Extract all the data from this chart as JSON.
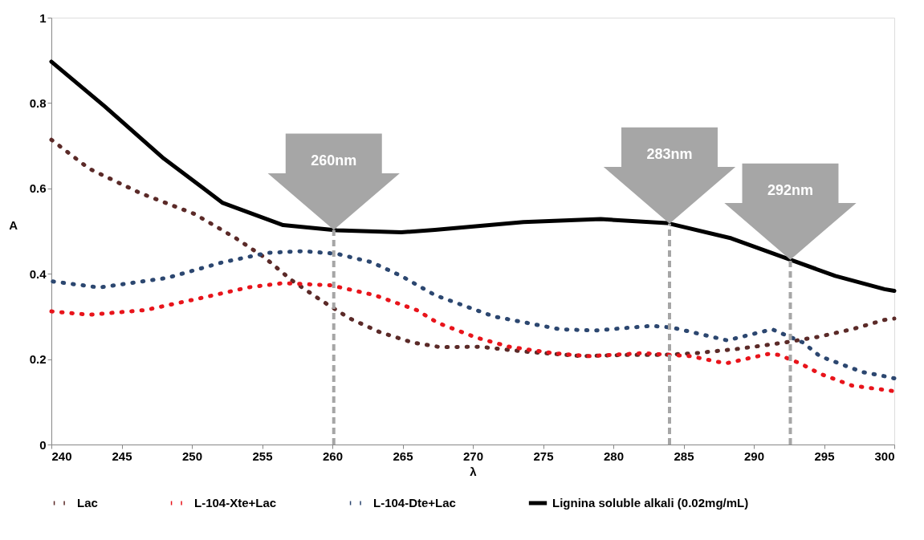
{
  "chart_data": {
    "type": "line",
    "xlabel": "λ",
    "ylabel": "A",
    "xlim": [
      240,
      300
    ],
    "xticks": [
      240,
      245,
      250,
      255,
      260,
      265,
      270,
      275,
      280,
      285,
      290,
      295,
      300
    ],
    "ylim": [
      0,
      1
    ],
    "yticks": [
      {
        "value": 0,
        "label": "0"
      },
      0.2,
      0.4,
      0.6,
      0.8,
      {
        "value": 1,
        "label": "1"
      }
    ],
    "grid": false,
    "legend": "bottom",
    "marker": "none",
    "series": [
      {
        "name": "Lac",
        "color": "#5b2a28",
        "line_style": "dotted",
        "x": [
          240,
          242.7,
          246.4,
          250.2,
          253.1,
          255.1,
          257.1,
          259.1,
          261.2,
          263.4,
          265.7,
          267.7,
          270.5,
          273.6,
          277.8,
          281,
          283.5,
          285.9,
          289.1,
          292.2,
          294.7,
          297.1,
          299.3,
          300
        ],
        "values": [
          0.714,
          0.646,
          0.588,
          0.54,
          0.484,
          0.44,
          0.385,
          0.34,
          0.296,
          0.263,
          0.239,
          0.228,
          0.229,
          0.218,
          0.207,
          0.21,
          0.21,
          0.214,
          0.225,
          0.239,
          0.253,
          0.271,
          0.292,
          0.295
        ]
      },
      {
        "name": "L-104-Xte+Lac",
        "color": "#e8141b",
        "line_style": "dotted",
        "x": [
          240,
          242.7,
          246.7,
          250.9,
          254,
          256.5,
          259.9,
          263,
          266,
          267.5,
          270.3,
          272.6,
          275.7,
          278.2,
          282.1,
          285.5,
          288,
          291,
          291.8,
          293.3,
          294.7,
          297,
          300
        ],
        "values": [
          0.312,
          0.304,
          0.315,
          0.345,
          0.368,
          0.378,
          0.373,
          0.35,
          0.315,
          0.285,
          0.25,
          0.229,
          0.214,
          0.207,
          0.214,
          0.207,
          0.19,
          0.212,
          0.21,
          0.19,
          0.166,
          0.138,
          0.125
        ]
      },
      {
        "name": "L-104-Dte+Lac",
        "color": "#2c4770",
        "line_style": "dotted",
        "x": [
          240.1,
          243.4,
          248.2,
          252.2,
          255.4,
          257.9,
          260.3,
          262.8,
          264.9,
          267.3,
          271.5,
          276.2,
          278.7,
          282.7,
          284.2,
          288.1,
          291.3,
          293.5,
          294.7,
          297.7,
          299.3,
          300
        ],
        "values": [
          0.382,
          0.368,
          0.39,
          0.427,
          0.449,
          0.453,
          0.447,
          0.427,
          0.395,
          0.35,
          0.3,
          0.27,
          0.267,
          0.278,
          0.274,
          0.244,
          0.27,
          0.239,
          0.207,
          0.17,
          0.16,
          0.155
        ]
      },
      {
        "name": "Lignina soluble alkali (0.02mg/mL)",
        "color": "#000000",
        "line_style": "solid",
        "x": [
          240,
          243.8,
          248,
          252.2,
          256.5,
          260.3,
          264.9,
          267.3,
          273.6,
          279.1,
          283.8,
          288.4,
          292,
          295.8,
          299.3,
          300
        ],
        "values": [
          0.897,
          0.792,
          0.67,
          0.566,
          0.514,
          0.502,
          0.497,
          0.503,
          0.521,
          0.528,
          0.519,
          0.483,
          0.44,
          0.395,
          0.364,
          0.36
        ]
      }
    ],
    "ref_lines": [
      {
        "axis": "x",
        "value": 260.1,
        "color": "#a6a6a6",
        "line_style": "dashed"
      },
      {
        "axis": "x",
        "value": 284,
        "color": "#a6a6a6",
        "line_style": "dashed"
      },
      {
        "axis": "x",
        "value": 292.6,
        "color": "#a6a6a6",
        "line_style": "dashed"
      }
    ],
    "annotations": [
      "260nm",
      "283nm",
      "292nm"
    ]
  }
}
